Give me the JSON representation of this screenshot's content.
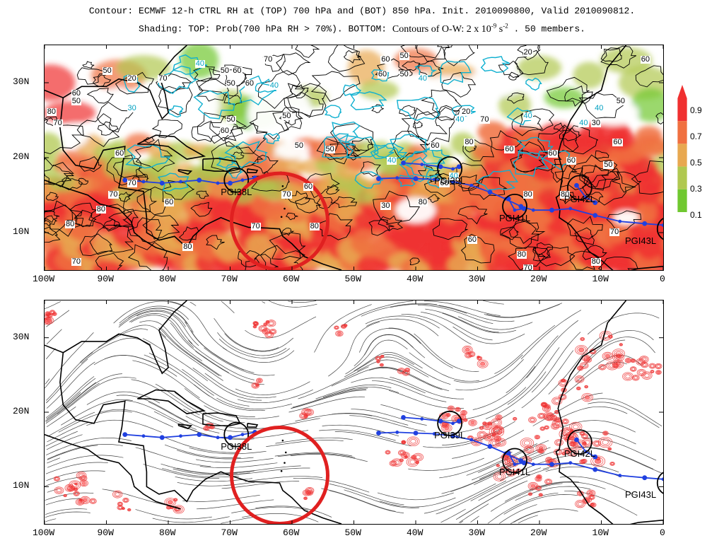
{
  "header": {
    "line1": "Contour: ECMWF 12-h CTRL RH at (TOP) 700 hPa and (BOT) 850 hPa. Init. 2010090800, Valid 2010090812.",
    "line2_prefix": "Shading: TOP: Prob(700 hPa RH > 70%).  BOTTOM:",
    "line2_contour": "Contours of O-W: 2 x 10",
    "line2_exp": "-9",
    "line2_unit": " s",
    "line2_exp2": "-2",
    "line2_suffix": " . 50 members."
  },
  "axes": {
    "lat_labels": [
      "30N",
      "20N",
      "10N"
    ],
    "lon_labels": [
      "100W",
      "90W",
      "80W",
      "70W",
      "60W",
      "50W",
      "40W",
      "30W",
      "20W",
      "10W",
      "0"
    ],
    "lon_range": [
      -100,
      0
    ],
    "lat_range": [
      5,
      35
    ]
  },
  "colorbar": {
    "labels": [
      "0.9",
      "0.7",
      "0.5",
      "0.3",
      "0.1"
    ],
    "colors": [
      "#f03030",
      "#f07040",
      "#e8a850",
      "#b0c850",
      "#70c830"
    ]
  },
  "storms": [
    {
      "name": "PGI38L",
      "lon": -69,
      "lat": 17
    },
    {
      "name": "PGI39L",
      "lon": -34.5,
      "lat": 18.5
    },
    {
      "name": "PGI41L",
      "lon": -24,
      "lat": 13.5
    },
    {
      "name": "PGI42L",
      "lon": -13.5,
      "lat": 16
    },
    {
      "name": "PGI43L",
      "lon": 1,
      "lat": 10.5
    }
  ],
  "highlight_circle": {
    "lon": -62,
    "lat": 11.5,
    "color": "#e02020"
  },
  "top_contour_labels": [
    {
      "text": "70",
      "lon": -64,
      "lat": 33
    },
    {
      "text": "40",
      "lon": -75,
      "lat": 32.5,
      "cyan": true
    },
    {
      "text": "50",
      "lon": -71,
      "lat": 31.5
    },
    {
      "text": "60",
      "lon": -69,
      "lat": 31.5
    },
    {
      "text": "50",
      "lon": -90,
      "lat": 31.5
    },
    {
      "text": "20",
      "lon": -86,
      "lat": 30.5
    },
    {
      "text": "70",
      "lon": -81,
      "lat": 30.5
    },
    {
      "text": "50",
      "lon": -70,
      "lat": 29.8
    },
    {
      "text": "60",
      "lon": -67,
      "lat": 29.8
    },
    {
      "text": "40",
      "lon": -63,
      "lat": 29.5,
      "cyan": true
    },
    {
      "text": "60",
      "lon": -95,
      "lat": 28.5
    },
    {
      "text": "50",
      "lon": -95,
      "lat": 27.5
    },
    {
      "text": "80",
      "lon": -99,
      "lat": 26
    },
    {
      "text": "70",
      "lon": -98,
      "lat": 24.5
    },
    {
      "text": "30",
      "lon": -86,
      "lat": 26.5,
      "cyan": true
    },
    {
      "text": "60",
      "lon": -71,
      "lat": 23.5
    },
    {
      "text": "50",
      "lon": -61,
      "lat": 25.5
    },
    {
      "text": "50",
      "lon": -54,
      "lat": 21
    },
    {
      "text": "60",
      "lon": -45,
      "lat": 33
    },
    {
      "text": "50",
      "lon": -42,
      "lat": 33.5
    },
    {
      "text": "60",
      "lon": -45.5,
      "lat": 31
    },
    {
      "text": "50",
      "lon": -42,
      "lat": 31
    },
    {
      "text": "40",
      "lon": -39,
      "lat": 30.5,
      "cyan": true
    },
    {
      "text": "20",
      "lon": -32,
      "lat": 26
    },
    {
      "text": "40",
      "lon": -33,
      "lat": 25,
      "cyan": true
    },
    {
      "text": "70",
      "lon": -29,
      "lat": 25
    },
    {
      "text": "80",
      "lon": -31.5,
      "lat": 22
    },
    {
      "text": "60",
      "lon": -37,
      "lat": 21.5
    },
    {
      "text": "50",
      "lon": -59,
      "lat": 21.5
    },
    {
      "text": "60",
      "lon": -88,
      "lat": 20.5
    },
    {
      "text": "70",
      "lon": -61,
      "lat": 15
    },
    {
      "text": "60",
      "lon": -57.5,
      "lat": 16
    },
    {
      "text": "70",
      "lon": -89,
      "lat": 15
    },
    {
      "text": "60",
      "lon": -80,
      "lat": 14
    },
    {
      "text": "70",
      "lon": -86,
      "lat": 16.5
    },
    {
      "text": "80",
      "lon": -91,
      "lat": 13
    },
    {
      "text": "80",
      "lon": -96,
      "lat": 11
    },
    {
      "text": "70",
      "lon": -66,
      "lat": 10.8
    },
    {
      "text": "80",
      "lon": -56.5,
      "lat": 10.8
    },
    {
      "text": "80",
      "lon": -77,
      "lat": 8
    },
    {
      "text": "70",
      "lon": -95,
      "lat": 6
    },
    {
      "text": "30",
      "lon": -45,
      "lat": 13.5
    },
    {
      "text": "80",
      "lon": -39,
      "lat": 14
    },
    {
      "text": "60",
      "lon": -31,
      "lat": 9
    },
    {
      "text": "80",
      "lon": -23,
      "lat": 7
    },
    {
      "text": "70",
      "lon": -22,
      "lat": 5.2
    },
    {
      "text": "80",
      "lon": -11,
      "lat": 6
    },
    {
      "text": "70",
      "lon": -8,
      "lat": 10
    },
    {
      "text": "60",
      "lon": -25,
      "lat": 21
    },
    {
      "text": "60",
      "lon": -18,
      "lat": 20.5
    },
    {
      "text": "80",
      "lon": -16,
      "lat": 15
    },
    {
      "text": "80",
      "lon": -22,
      "lat": 15
    },
    {
      "text": "60",
      "lon": -15,
      "lat": 19.5
    },
    {
      "text": "50",
      "lon": -9,
      "lat": 19
    },
    {
      "text": "60",
      "lon": -7.5,
      "lat": 22
    },
    {
      "text": "50",
      "lon": -7,
      "lat": 27.5
    },
    {
      "text": "60",
      "lon": -3,
      "lat": 33
    },
    {
      "text": "20",
      "lon": -22,
      "lat": 34
    },
    {
      "text": "40",
      "lon": -10.5,
      "lat": 26.5,
      "cyan": true
    },
    {
      "text": "40",
      "lon": -13,
      "lat": 24.5,
      "cyan": true
    },
    {
      "text": "30",
      "lon": -11,
      "lat": 24.5
    },
    {
      "text": "40",
      "lon": -44,
      "lat": 19.5,
      "cyan": true
    },
    {
      "text": "40",
      "lon": -34,
      "lat": 17.5,
      "cyan": true
    },
    {
      "text": "60",
      "lon": -35.5,
      "lat": 16.5
    },
    {
      "text": "40",
      "lon": -22,
      "lat": 25.5,
      "cyan": true
    },
    {
      "text": "50",
      "lon": -70,
      "lat": 25
    }
  ]
}
